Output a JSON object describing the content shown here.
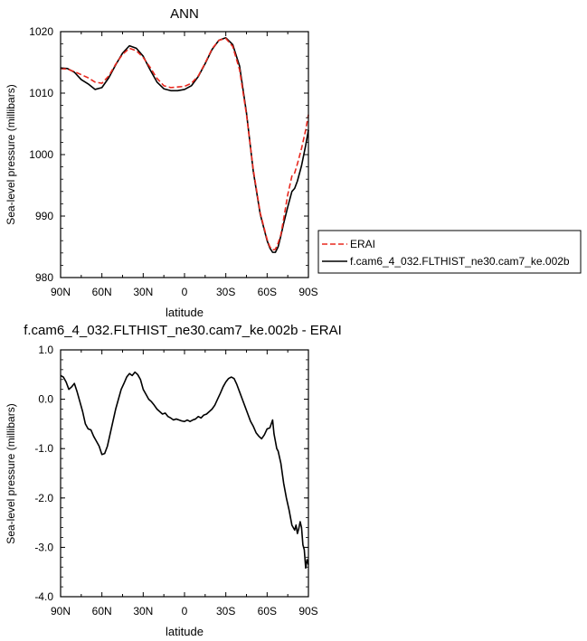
{
  "chart_data": [
    {
      "type": "line",
      "title": "ANN",
      "xlabel": "latitude",
      "ylabel": "Sea-level pressure (millibars)",
      "xlim": [
        -90,
        90
      ],
      "ylim": [
        980,
        1020
      ],
      "x_tick_values": [
        -90,
        -60,
        -30,
        0,
        30,
        60,
        90
      ],
      "x_tick_labels": [
        "90N",
        "60N",
        "30N",
        "0",
        "30S",
        "60S",
        "90S"
      ],
      "y_tick_values": [
        980,
        990,
        1000,
        1010,
        1020
      ],
      "y_tick_labels": [
        "980",
        "990",
        "1000",
        "1010",
        "1020"
      ],
      "legend_position": "right",
      "series": [
        {
          "name": "ERAI",
          "color": "#e8281e",
          "dash": "dashed",
          "x": [
            -90,
            -85,
            -80,
            -75,
            -70,
            -65,
            -60,
            -55,
            -50,
            -45,
            -40,
            -35,
            -30,
            -25,
            -20,
            -15,
            -10,
            -5,
            0,
            5,
            10,
            15,
            20,
            25,
            30,
            35,
            40,
            45,
            50,
            55,
            60,
            62,
            64,
            66,
            68,
            70,
            72,
            75,
            78,
            80,
            82,
            85,
            88,
            90
          ],
          "y": [
            1014.0,
            1013.9,
            1013.5,
            1013.0,
            1012.5,
            1011.8,
            1011.6,
            1012.8,
            1014.7,
            1016.3,
            1017.3,
            1016.9,
            1015.8,
            1014.2,
            1012.4,
            1011.2,
            1010.9,
            1011.0,
            1011.1,
            1011.6,
            1012.8,
            1014.9,
            1017.2,
            1018.6,
            1018.9,
            1017.6,
            1013.8,
            1006.5,
            997.5,
            990.5,
            986.2,
            985.0,
            984.5,
            984.6,
            985.6,
            987.0,
            989.5,
            993.5,
            996.5,
            997.0,
            998.5,
            1001.0,
            1004.0,
            1006.5
          ]
        },
        {
          "name": "f.cam6_4_032.FLTHIST_ne30.cam7_ke.002b",
          "color": "#000000",
          "dash": "solid",
          "x": [
            -90,
            -85,
            -80,
            -75,
            -70,
            -65,
            -60,
            -55,
            -50,
            -45,
            -40,
            -35,
            -30,
            -25,
            -20,
            -15,
            -10,
            -5,
            0,
            5,
            10,
            15,
            20,
            25,
            30,
            35,
            40,
            45,
            50,
            55,
            60,
            62,
            64,
            66,
            68,
            70,
            72,
            75,
            78,
            80,
            82,
            85,
            88,
            90
          ],
          "y": [
            1014.1,
            1014.0,
            1013.4,
            1012.2,
            1011.5,
            1010.6,
            1010.9,
            1012.5,
            1014.6,
            1016.5,
            1017.7,
            1017.3,
            1016.0,
            1013.8,
            1011.8,
            1010.7,
            1010.4,
            1010.4,
            1010.6,
            1011.2,
            1012.7,
            1014.8,
            1017.1,
            1018.6,
            1019.0,
            1017.9,
            1014.4,
            1006.8,
            997.2,
            990.3,
            986.0,
            984.8,
            984.1,
            984.1,
            985.0,
            986.8,
            988.8,
            991.5,
            994.0,
            994.5,
            995.7,
            998.2,
            1001.5,
            1004.0
          ]
        }
      ]
    },
    {
      "type": "line",
      "title": "f.cam6_4_032.FLTHIST_ne30.cam7_ke.002b - ERAI",
      "xlabel": "latitude",
      "ylabel": "Sea-level pressure (millibars)",
      "xlim": [
        -90,
        90
      ],
      "ylim": [
        -4.0,
        1.0
      ],
      "x_tick_values": [
        -90,
        -60,
        -30,
        0,
        30,
        60,
        90
      ],
      "x_tick_labels": [
        "90N",
        "60N",
        "30N",
        "0",
        "30S",
        "60S",
        "90S"
      ],
      "y_tick_values": [
        -4.0,
        -3.0,
        -2.0,
        -1.0,
        0.0,
        1.0
      ],
      "y_tick_labels": [
        "-4.0",
        "-3.0",
        "-2.0",
        "-1.0",
        "0.0",
        "1.0"
      ],
      "series": [
        {
          "color": "#000000",
          "dash": "solid",
          "x": [
            -90,
            -88,
            -86,
            -84,
            -82,
            -80,
            -78,
            -76,
            -74,
            -72,
            -70,
            -68,
            -66,
            -64,
            -62,
            -60,
            -58,
            -56,
            -54,
            -52,
            -50,
            -48,
            -46,
            -44,
            -42,
            -40,
            -38,
            -36,
            -34,
            -32,
            -30,
            -28,
            -26,
            -24,
            -22,
            -20,
            -18,
            -16,
            -14,
            -12,
            -10,
            -8,
            -6,
            -4,
            -2,
            0,
            2,
            4,
            6,
            8,
            10,
            12,
            14,
            16,
            18,
            20,
            22,
            24,
            26,
            28,
            30,
            32,
            34,
            36,
            38,
            40,
            42,
            44,
            46,
            48,
            50,
            52,
            54,
            56,
            58,
            60,
            62,
            64,
            65,
            66,
            67,
            68,
            70,
            72,
            74,
            76,
            78,
            80,
            81,
            82,
            83,
            84,
            85,
            86,
            87,
            88,
            89,
            90
          ],
          "y": [
            0.48,
            0.45,
            0.35,
            0.2,
            0.25,
            0.32,
            0.15,
            -0.05,
            -0.25,
            -0.5,
            -0.6,
            -0.62,
            -0.75,
            -0.85,
            -0.95,
            -1.12,
            -1.1,
            -0.95,
            -0.7,
            -0.45,
            -0.2,
            0.0,
            0.2,
            0.32,
            0.45,
            0.52,
            0.48,
            0.55,
            0.5,
            0.4,
            0.2,
            0.1,
            0.0,
            -0.05,
            -0.12,
            -0.2,
            -0.25,
            -0.3,
            -0.28,
            -0.35,
            -0.38,
            -0.42,
            -0.4,
            -0.42,
            -0.44,
            -0.45,
            -0.42,
            -0.45,
            -0.42,
            -0.4,
            -0.35,
            -0.38,
            -0.32,
            -0.3,
            -0.25,
            -0.2,
            -0.12,
            0.0,
            0.12,
            0.25,
            0.35,
            0.42,
            0.45,
            0.42,
            0.3,
            0.15,
            0.0,
            -0.15,
            -0.3,
            -0.45,
            -0.55,
            -0.68,
            -0.75,
            -0.8,
            -0.72,
            -0.6,
            -0.58,
            -0.42,
            -0.7,
            -0.85,
            -1.0,
            -1.05,
            -1.3,
            -1.7,
            -2.0,
            -2.25,
            -2.55,
            -2.65,
            -2.55,
            -2.72,
            -2.62,
            -2.48,
            -2.6,
            -2.95,
            -3.05,
            -3.42,
            -3.25,
            -3.35
          ]
        }
      ]
    }
  ]
}
